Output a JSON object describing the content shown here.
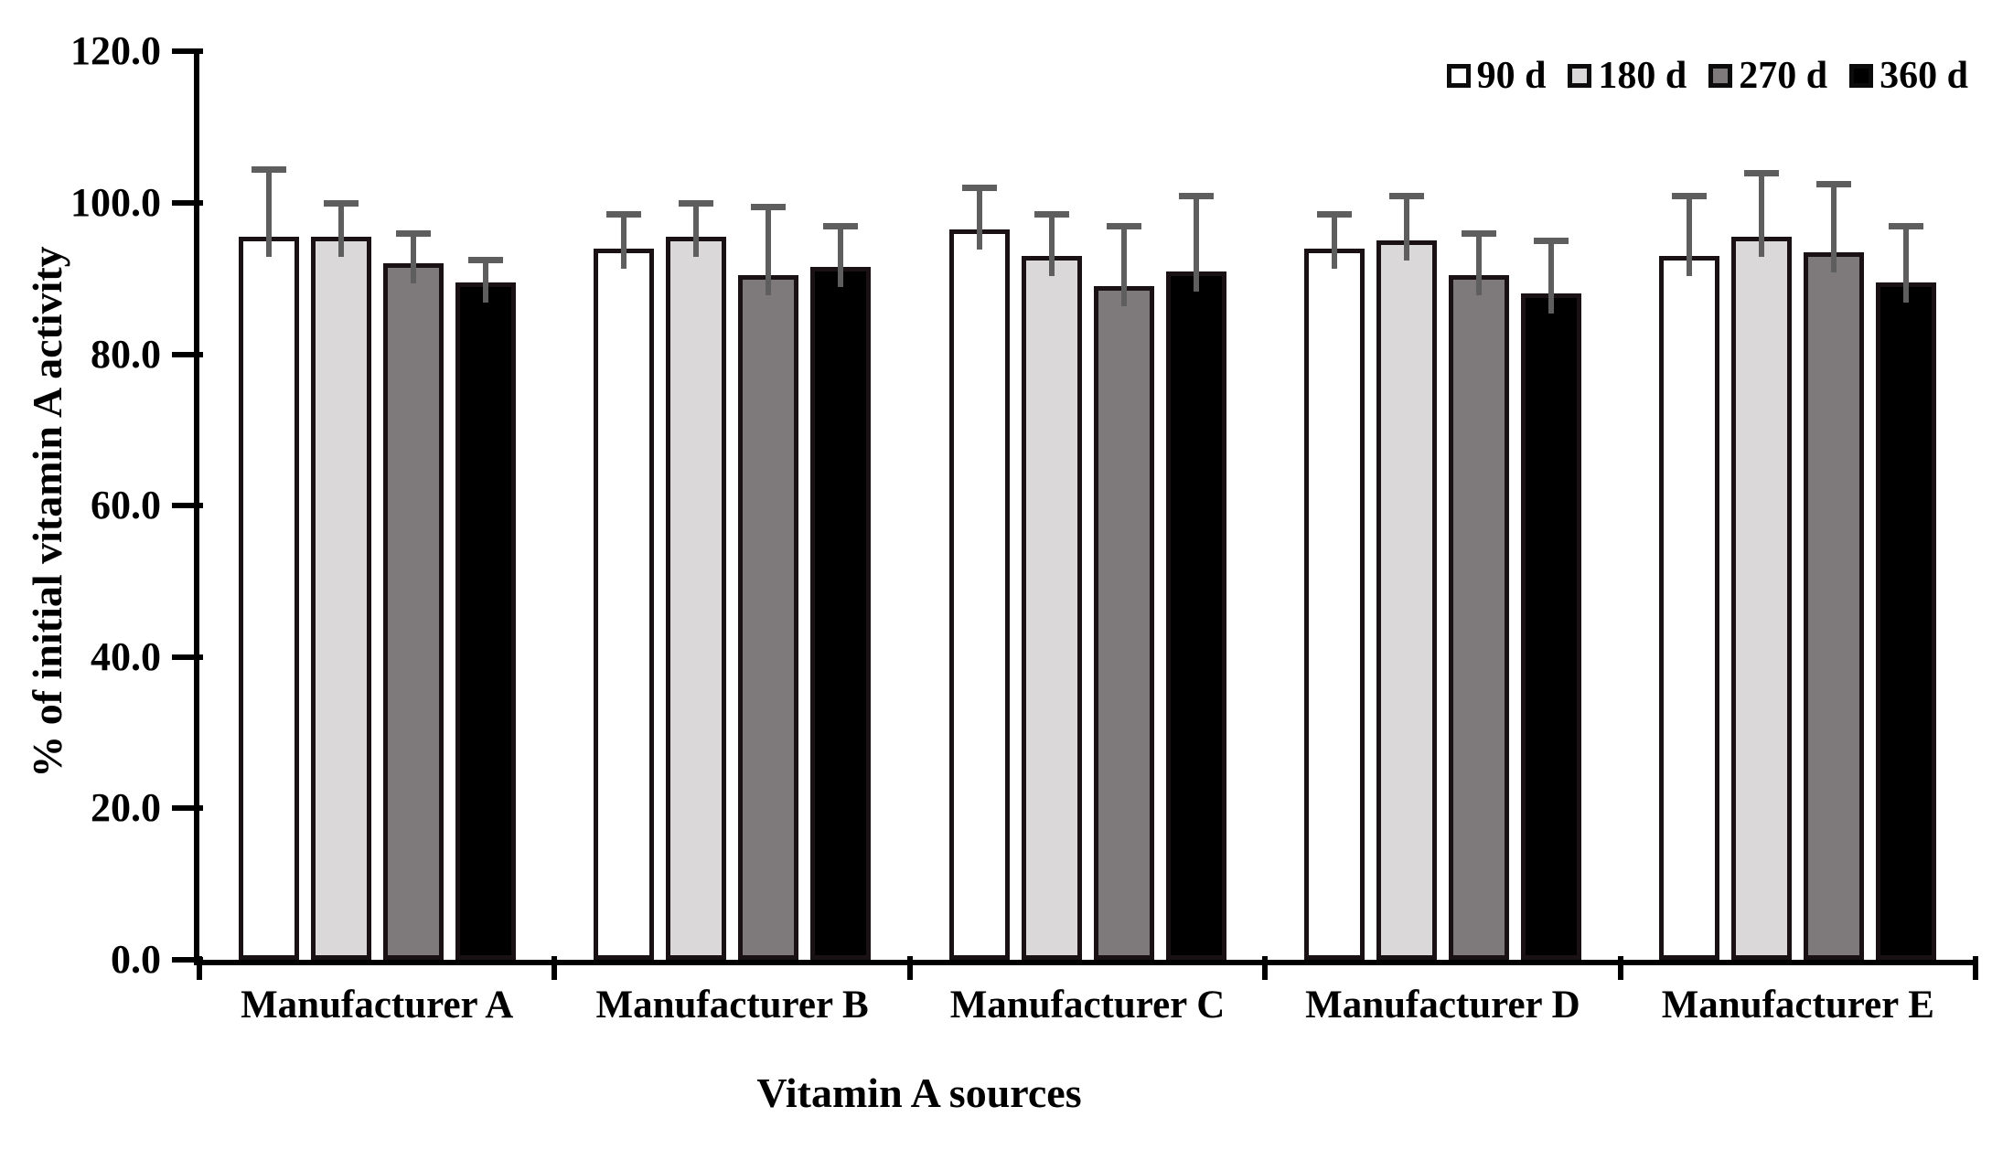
{
  "chart_data": {
    "type": "bar",
    "title": "",
    "xlabel": "Vitamin A sources",
    "ylabel": "% of initial vitamin A activity",
    "ylim": [
      0,
      120
    ],
    "ytick_step": 20,
    "ytick_labels": [
      "0.0",
      "20.0",
      "40.0",
      "60.0",
      "80.0",
      "100.0",
      "120.0"
    ],
    "grid": false,
    "legend_position": "top-right",
    "error_bars": "upper",
    "categories": [
      "Manufacturer A",
      "Manufacturer B",
      "Manufacturer C",
      "Manufacturer D",
      "Manufacturer E"
    ],
    "series": [
      {
        "name": "90 d",
        "color": "#ffffff",
        "values": [
          95.5,
          94.0,
          96.5,
          94.0,
          93.0
        ],
        "errors": [
          9.0,
          4.5,
          5.5,
          4.5,
          8.0
        ]
      },
      {
        "name": "180 d",
        "color": "#dbd8d9",
        "values": [
          95.5,
          95.5,
          93.0,
          95.0,
          95.5
        ],
        "errors": [
          4.5,
          4.5,
          5.5,
          6.0,
          8.5
        ]
      },
      {
        "name": "270 d",
        "color": "#7e797b",
        "values": [
          92.0,
          90.5,
          89.0,
          90.5,
          93.5
        ],
        "errors": [
          4.0,
          9.0,
          8.0,
          5.5,
          9.0
        ]
      },
      {
        "name": "360 d",
        "color": "#000000",
        "values": [
          89.5,
          91.5,
          91.0,
          88.0,
          89.5
        ],
        "errors": [
          3.0,
          5.5,
          10.0,
          7.0,
          7.5
        ]
      }
    ],
    "colors": {
      "axis": "#000000",
      "error_bar": "#5e5e5e",
      "bar_border": "#191113"
    }
  }
}
